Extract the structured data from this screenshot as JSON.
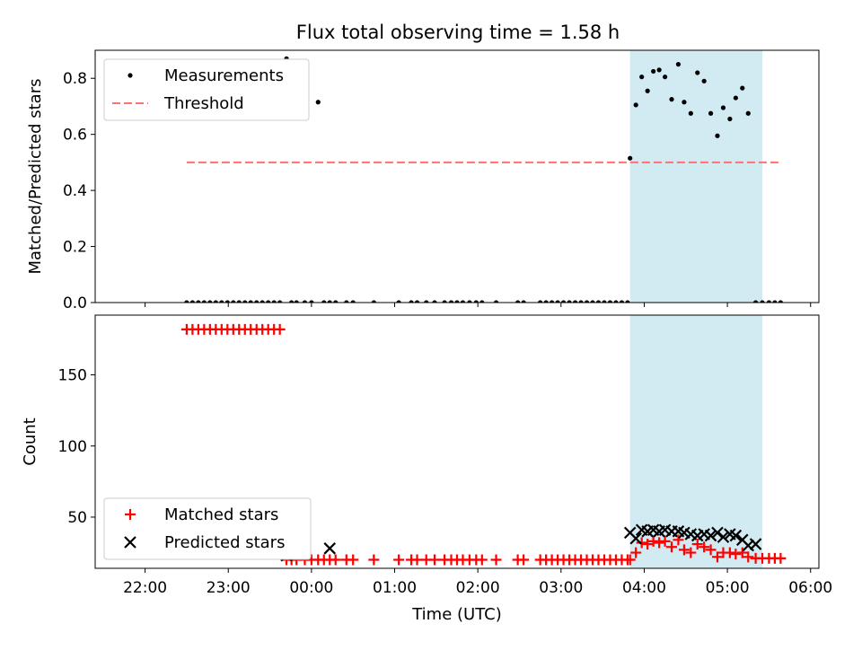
{
  "title": "Flux total observing time = 1.58 h",
  "colors": {
    "measurement": "#000000",
    "threshold": "#ff7070",
    "matched": "#ff0000",
    "predicted": "#000000",
    "shade": "#add8e6"
  },
  "chart_data": [
    {
      "type": "scatter",
      "position": "top",
      "xlabel": "",
      "ylabel": "Matched/Predicted stars",
      "xlim": [
        21.4,
        30.1
      ],
      "ylim": [
        0,
        0.9
      ],
      "yticks": [
        0.0,
        0.2,
        0.4,
        0.6,
        0.8
      ],
      "ytick_labels": [
        "0.0",
        "0.2",
        "0.4",
        "0.6",
        "0.8"
      ],
      "shaded_span": [
        27.83,
        29.42
      ],
      "legend": {
        "placement": "upper-left",
        "entries": [
          "Measurements",
          "Threshold"
        ]
      },
      "series": [
        {
          "name": "Measurements",
          "marker": "dot",
          "x": [
            22.5,
            22.57,
            22.64,
            22.71,
            22.78,
            22.85,
            22.92,
            22.99,
            23.06,
            23.13,
            23.2,
            23.27,
            23.34,
            23.41,
            23.48,
            23.55,
            23.62,
            23.7,
            23.76,
            23.82,
            23.92,
            24.0,
            24.08,
            24.15,
            24.22,
            24.29,
            24.42,
            24.5,
            24.75,
            25.05,
            25.2,
            25.27,
            25.38,
            25.48,
            25.6,
            25.68,
            25.75,
            25.82,
            25.9,
            25.98,
            26.05,
            26.22,
            26.48,
            26.55,
            26.75,
            26.82,
            26.89,
            26.96,
            27.03,
            27.1,
            27.17,
            27.24,
            27.31,
            27.38,
            27.45,
            27.52,
            27.59,
            27.66,
            27.73,
            27.8,
            27.83,
            27.9,
            27.97,
            28.04,
            28.11,
            28.18,
            28.25,
            28.33,
            28.41,
            28.48,
            28.56,
            28.64,
            28.72,
            28.8,
            28.88,
            28.95,
            29.03,
            29.1,
            29.18,
            29.25,
            29.34,
            29.42,
            29.5,
            29.57,
            29.64
          ],
          "y": [
            0,
            0,
            0,
            0,
            0,
            0,
            0,
            0,
            0,
            0,
            0,
            0,
            0,
            0,
            0,
            0,
            0,
            0.87,
            0,
            0,
            0,
            0,
            0.715,
            0,
            0,
            0,
            0,
            0,
            0,
            0,
            0,
            0,
            0,
            0,
            0,
            0,
            0,
            0,
            0,
            0,
            0,
            0,
            0,
            0,
            0,
            0,
            0,
            0,
            0,
            0,
            0,
            0,
            0,
            0,
            0,
            0,
            0,
            0,
            0,
            0,
            0.515,
            0.705,
            0.805,
            0.755,
            0.825,
            0.83,
            0.805,
            0.725,
            0.85,
            0.715,
            0.675,
            0.82,
            0.79,
            0.675,
            0.595,
            0.695,
            0.655,
            0.73,
            0.765,
            0.675,
            0,
            0,
            0,
            0,
            0
          ]
        },
        {
          "name": "Threshold",
          "marker": "dashed-line",
          "x": [
            22.5,
            29.65
          ],
          "y": [
            0.5,
            0.5
          ]
        }
      ]
    },
    {
      "type": "scatter",
      "position": "bottom",
      "xlabel": "Time (UTC)",
      "ylabel": "Count",
      "xlim": [
        21.4,
        30.1
      ],
      "ylim": [
        14,
        192
      ],
      "xticks": [
        22,
        23,
        24,
        25,
        26,
        27,
        28,
        29,
        30
      ],
      "xtick_labels": [
        "22:00",
        "23:00",
        "00:00",
        "01:00",
        "02:00",
        "03:00",
        "04:00",
        "05:00",
        "06:00"
      ],
      "yticks": [
        50,
        100,
        150
      ],
      "ytick_labels": [
        "50",
        "100",
        "150"
      ],
      "shaded_span": [
        27.83,
        29.42
      ],
      "legend": {
        "placement": "lower-left",
        "entries": [
          "Matched stars",
          "Predicted stars"
        ]
      },
      "series": [
        {
          "name": "Matched stars",
          "marker": "plus",
          "x": [
            22.5,
            22.57,
            22.64,
            22.71,
            22.78,
            22.85,
            22.92,
            22.99,
            23.06,
            23.13,
            23.2,
            23.27,
            23.34,
            23.41,
            23.48,
            23.55,
            23.62,
            23.7,
            23.76,
            23.82,
            23.92,
            24.0,
            24.08,
            24.15,
            24.22,
            24.29,
            24.42,
            24.5,
            24.75,
            25.05,
            25.2,
            25.27,
            25.38,
            25.48,
            25.6,
            25.68,
            25.75,
            25.82,
            25.9,
            25.98,
            26.05,
            26.22,
            26.48,
            26.55,
            26.75,
            26.82,
            26.89,
            26.96,
            27.03,
            27.1,
            27.17,
            27.24,
            27.31,
            27.38,
            27.45,
            27.52,
            27.59,
            27.66,
            27.73,
            27.8,
            27.83,
            27.9,
            27.97,
            28.04,
            28.11,
            28.18,
            28.25,
            28.33,
            28.41,
            28.48,
            28.56,
            28.64,
            28.72,
            28.8,
            28.88,
            28.95,
            29.03,
            29.1,
            29.18,
            29.25,
            29.34,
            29.42,
            29.5,
            29.57,
            29.64
          ],
          "y": [
            182,
            182,
            182,
            182,
            182,
            182,
            182,
            182,
            182,
            182,
            182,
            182,
            182,
            182,
            182,
            182,
            182,
            20,
            20,
            20,
            20,
            20,
            20,
            20,
            20,
            20,
            20,
            20,
            20,
            20,
            20,
            20,
            20,
            20,
            20,
            20,
            20,
            20,
            20,
            20,
            20,
            20,
            20,
            20,
            20,
            20,
            20,
            20,
            20,
            20,
            20,
            20,
            20,
            20,
            20,
            20,
            20,
            20,
            20,
            20,
            20,
            25,
            32,
            31,
            33,
            32,
            33,
            29,
            34,
            27,
            25,
            31,
            29,
            27,
            22,
            25,
            25,
            24,
            25,
            22,
            21,
            21,
            21,
            21,
            21
          ]
        },
        {
          "name": "Predicted stars",
          "marker": "x",
          "x": [
            23.7,
            24.22,
            27.83,
            27.9,
            27.97,
            28.04,
            28.11,
            28.18,
            28.25,
            28.33,
            28.41,
            28.48,
            28.56,
            28.64,
            28.72,
            28.8,
            28.88,
            28.95,
            29.03,
            29.1,
            29.18,
            29.25,
            29.34
          ],
          "y": [
            23,
            28,
            39,
            35,
            41,
            40,
            41,
            40,
            41,
            40,
            40,
            39,
            38,
            37,
            38,
            37,
            39,
            36,
            38,
            37,
            34,
            30,
            31
          ]
        }
      ]
    }
  ]
}
